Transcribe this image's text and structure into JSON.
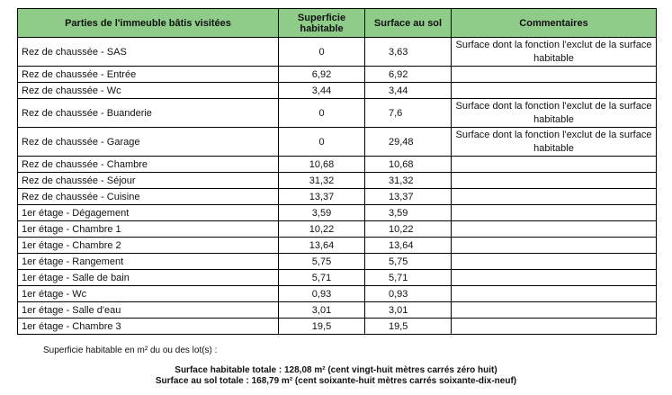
{
  "table": {
    "headers": [
      "Parties de l'immeuble bâtis visitées",
      "Superficie habitable",
      "Surface au sol",
      "Commentaires"
    ],
    "rows": [
      {
        "part": "Rez de chaussée - SAS",
        "habitable": "0",
        "sol": "3,63",
        "comment": "Surface dont la fonction l'exclut de la surface habitable"
      },
      {
        "part": "Rez de chaussée - Entrée",
        "habitable": "6,92",
        "sol": "6,92",
        "comment": ""
      },
      {
        "part": "Rez de chaussée - Wc",
        "habitable": "3,44",
        "sol": "3,44",
        "comment": ""
      },
      {
        "part": "Rez de chaussée - Buanderie",
        "habitable": "0",
        "sol": "7,6",
        "comment": "Surface dont la fonction l'exclut de la surface habitable"
      },
      {
        "part": "Rez de chaussée - Garage",
        "habitable": "0",
        "sol": "29,48",
        "comment": "Surface dont la fonction l'exclut de la surface habitable"
      },
      {
        "part": "Rez de chaussée - Chambre",
        "habitable": "10,68",
        "sol": "10,68",
        "comment": ""
      },
      {
        "part": "Rez de chaussée - Séjour",
        "habitable": "31,32",
        "sol": "31,32",
        "comment": ""
      },
      {
        "part": "Rez de chaussée - Cuisine",
        "habitable": "13,37",
        "sol": "13,37",
        "comment": ""
      },
      {
        "part": "1er étage - Dégagement",
        "habitable": "3,59",
        "sol": "3,59",
        "comment": ""
      },
      {
        "part": "1er étage - Chambre 1",
        "habitable": "10,22",
        "sol": "10,22",
        "comment": ""
      },
      {
        "part": "1er étage - Chambre 2",
        "habitable": "13,64",
        "sol": "13,64",
        "comment": ""
      },
      {
        "part": "1er étage - Rangement",
        "habitable": "5,75",
        "sol": "5,75",
        "comment": ""
      },
      {
        "part": "1er étage - Salle de bain",
        "habitable": "5,71",
        "sol": "5,71",
        "comment": ""
      },
      {
        "part": "1er étage - Wc",
        "habitable": "0,93",
        "sol": "0,93",
        "comment": ""
      },
      {
        "part": "1er étage - Salle d'eau",
        "habitable": "3,01",
        "sol": "3,01",
        "comment": ""
      },
      {
        "part": "1er étage - Chambre 3",
        "habitable": "19,5",
        "sol": "19,5",
        "comment": ""
      }
    ]
  },
  "notes": {
    "intro": "Superficie habitable en m² du ou des lot(s) :",
    "total_habitable": "Surface habitable totale : 128,08 m² (cent vingt-huit mètres carrés zéro huit)",
    "total_sol": "Surface au sol totale : 168,79 m² (cent soixante-huit mètres carrés soixante-dix-neuf)"
  },
  "colors": {
    "header_bg": "#8fcc8a",
    "border": "#000000"
  }
}
